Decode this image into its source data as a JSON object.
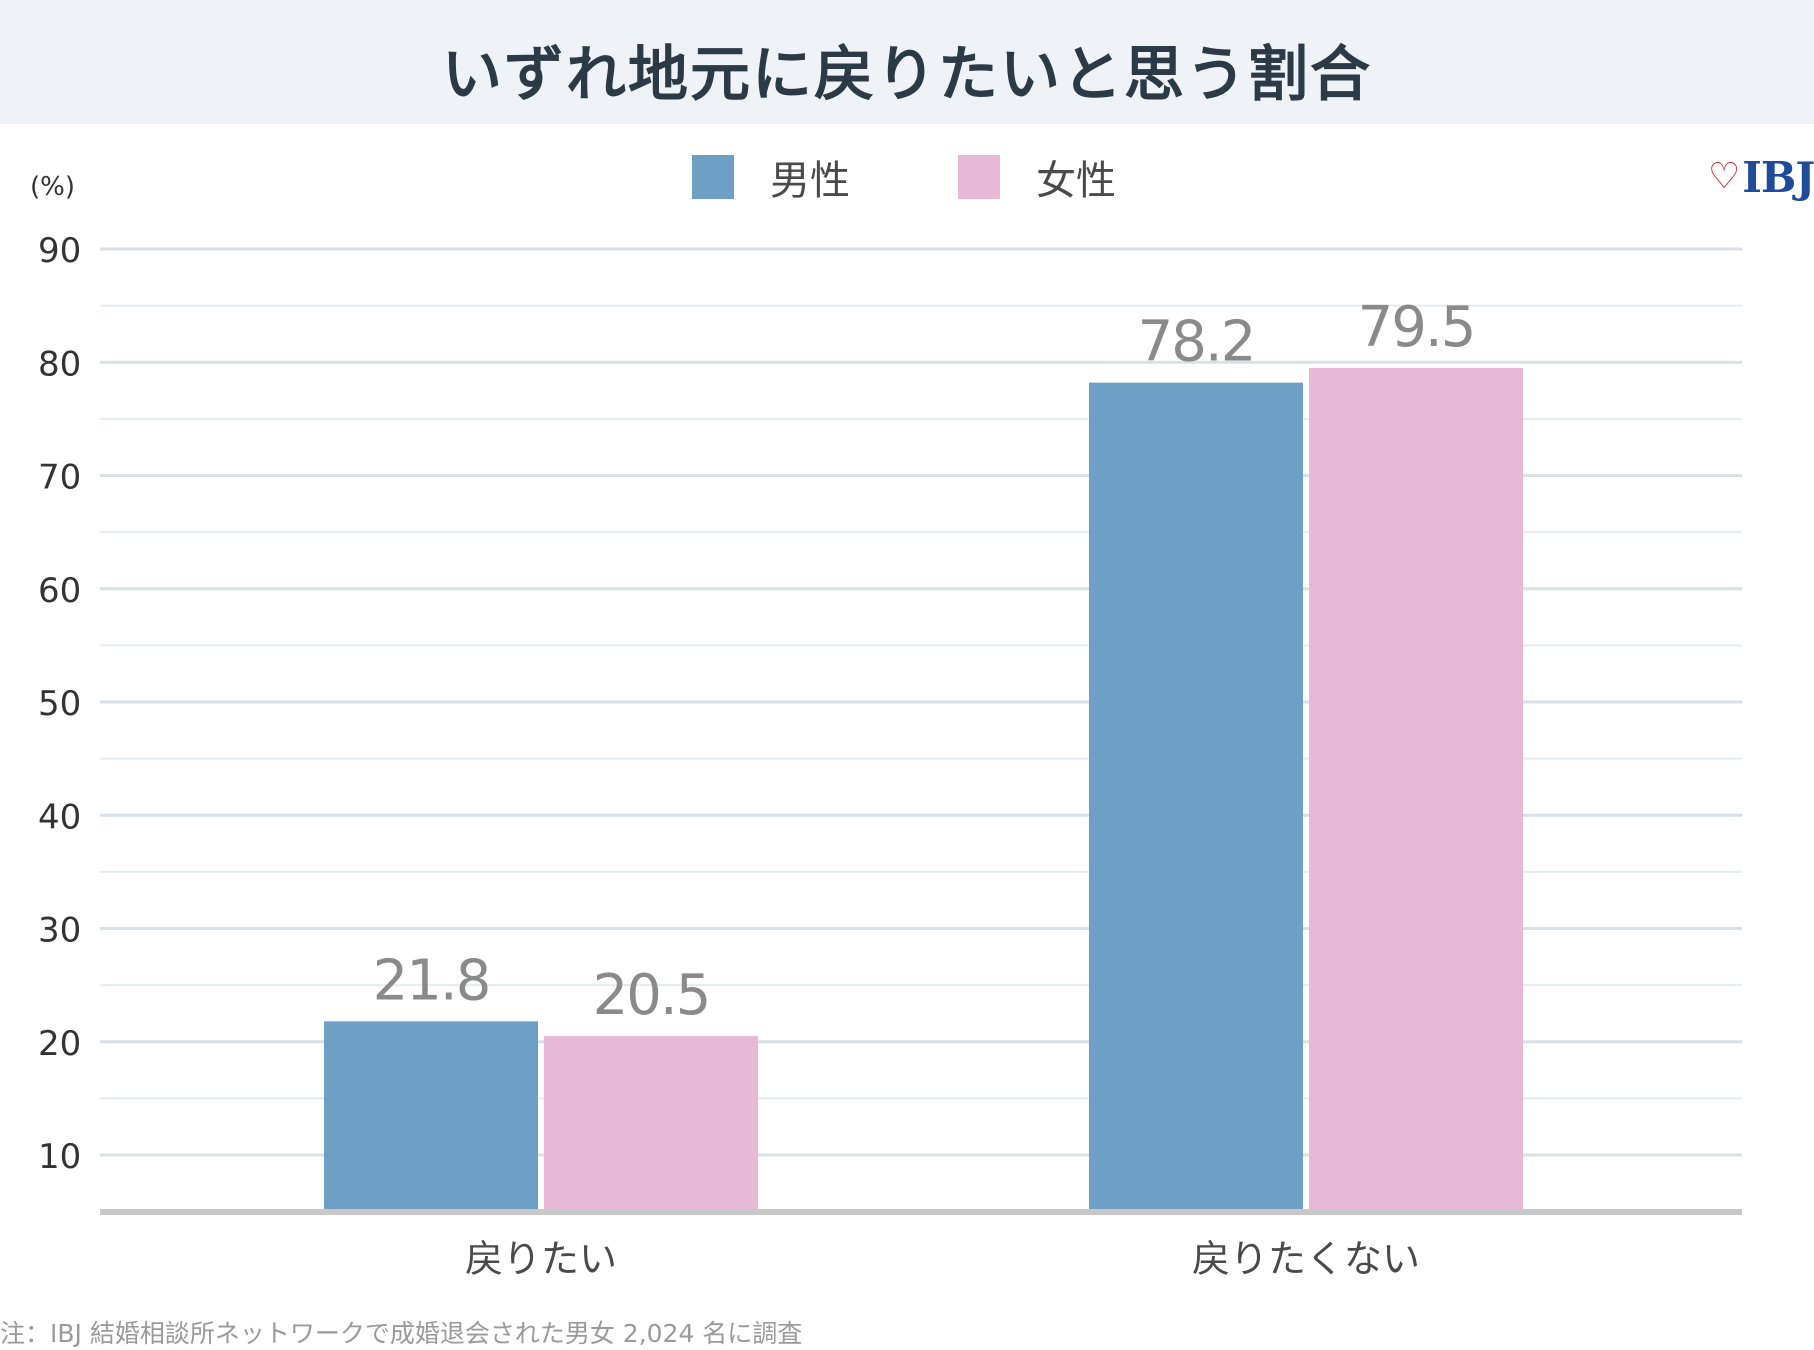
{
  "title": "いずれ地元に戻りたいと思う割合",
  "unit_label": "(%)",
  "logo": {
    "text": "IBJ",
    "icon": "heart-icon",
    "heart_color": "#d0283b",
    "text_color": "#1f4b9a"
  },
  "legend": [
    {
      "label": "男性",
      "color": "#6e9fc4"
    },
    {
      "label": "女性",
      "color": "#e7b9d4"
    }
  ],
  "note": "注：IBJ 結婚相談所ネットワークで成婚退会された男女 2,024 名に調査",
  "chart_data": {
    "type": "bar",
    "categories": [
      "戻りたい",
      "戻りたくない"
    ],
    "series": [
      {
        "name": "男性",
        "values": [
          21.8,
          78.2
        ],
        "color": "#6e9fc4"
      },
      {
        "name": "女性",
        "values": [
          20.5,
          79.5
        ],
        "color": "#e7b9d4"
      }
    ],
    "data_labels": [
      [
        "21.8",
        "78.2"
      ],
      [
        "20.5",
        "79.5"
      ]
    ],
    "ylabel": "(%)",
    "yticks": [
      10,
      20,
      30,
      40,
      50,
      60,
      70,
      80,
      90
    ],
    "ylim": [
      5,
      90
    ],
    "grid": true,
    "legend_position": "top-center"
  }
}
